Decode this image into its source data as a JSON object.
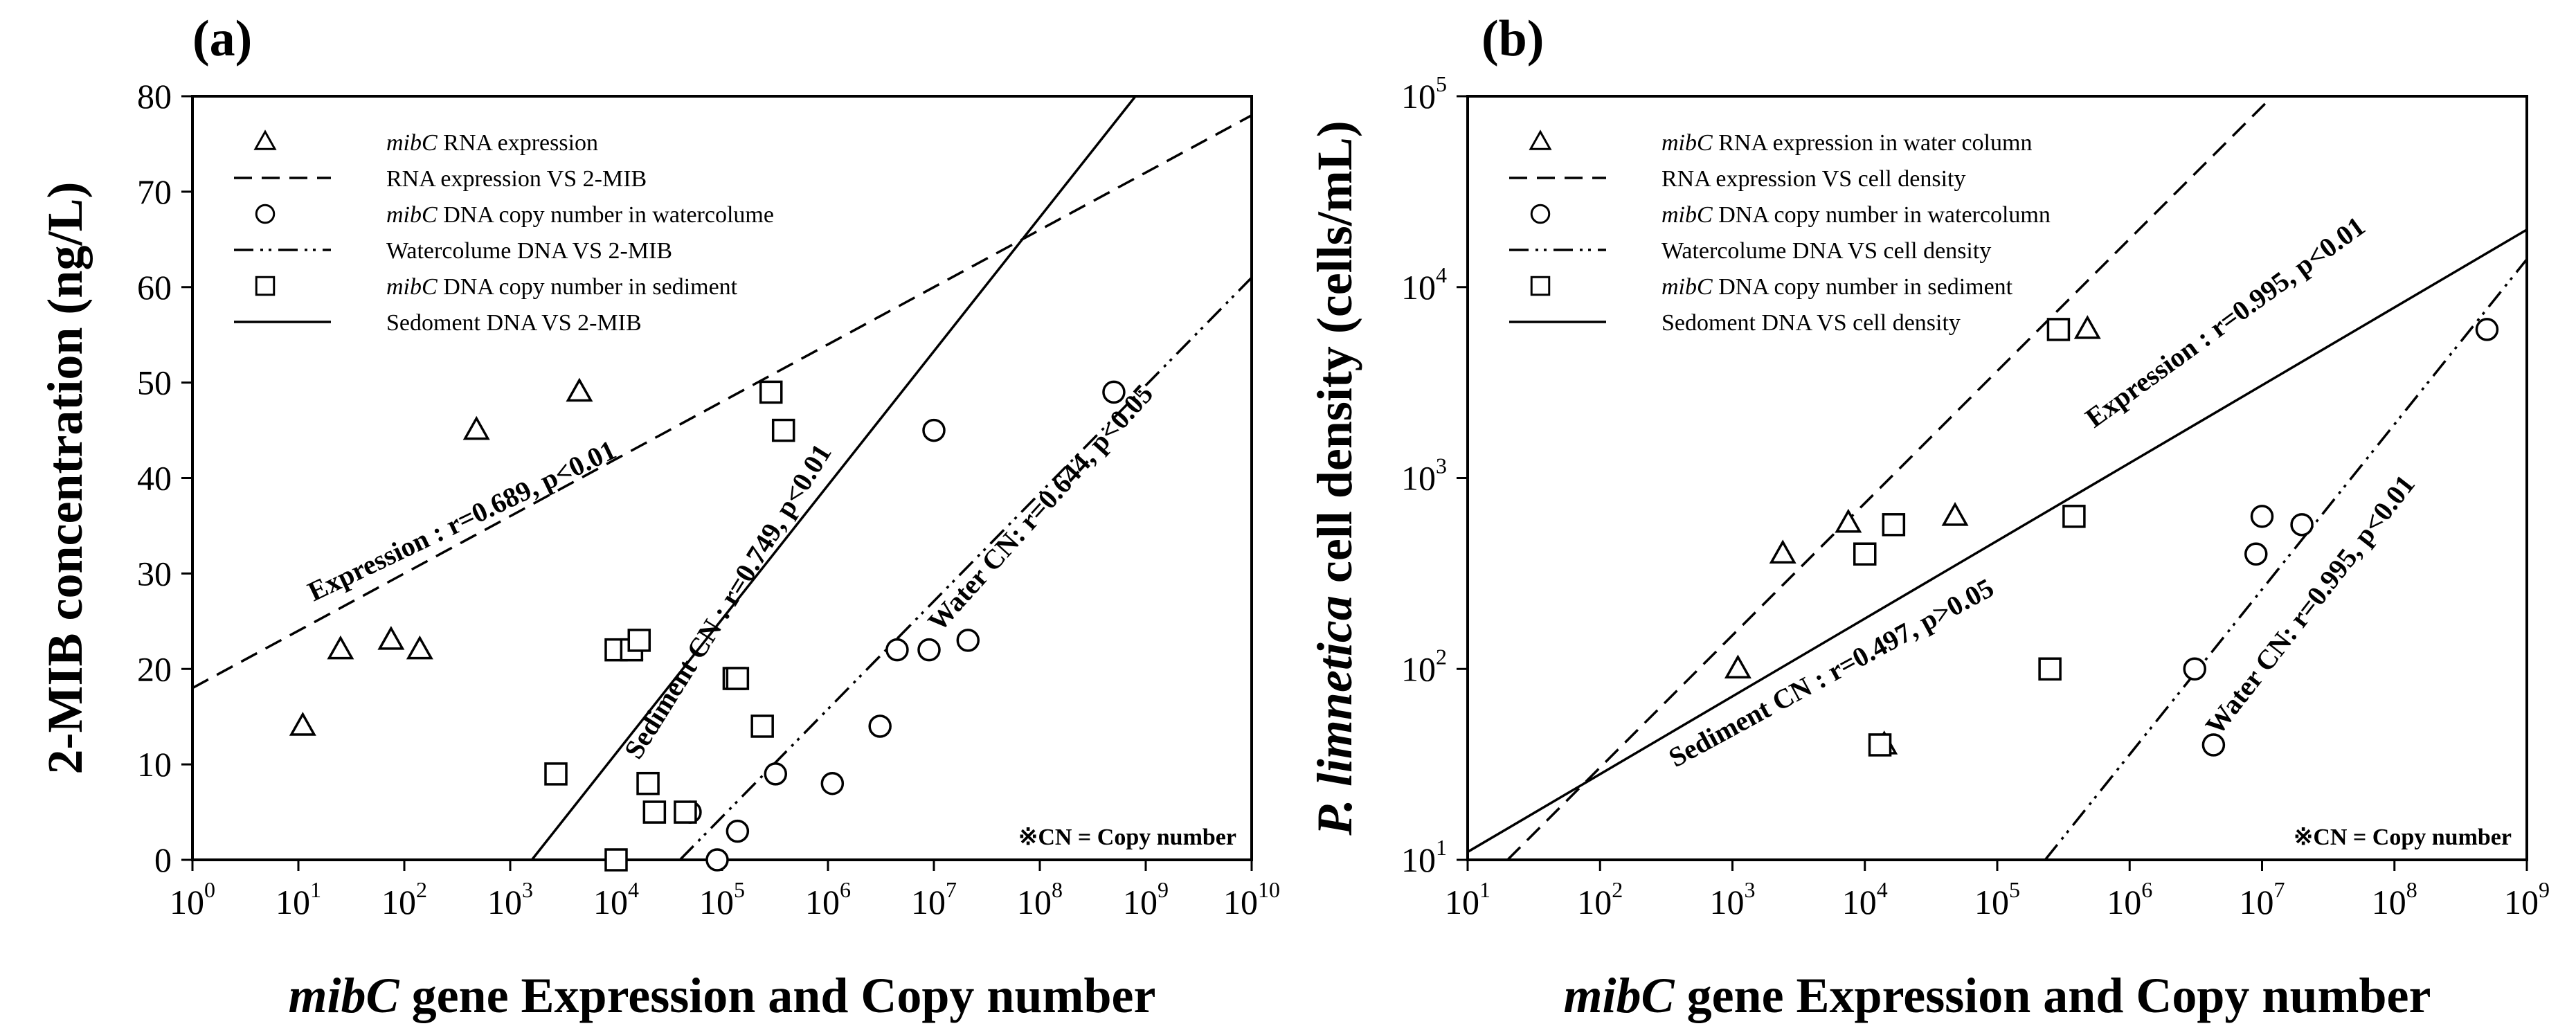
{
  "chart_data": [
    {
      "type": "scatter",
      "panel_label": "(a)",
      "x_scale": "log",
      "y_scale": "linear",
      "xlim_exp": [
        0,
        10
      ],
      "ylim": [
        0,
        80
      ],
      "x_ticks_exp": [
        0,
        1,
        2,
        3,
        4,
        5,
        6,
        7,
        8,
        9,
        10
      ],
      "y_ticks": [
        0,
        10,
        20,
        30,
        40,
        50,
        60,
        70,
        80
      ],
      "xlabel_italic": "mibC",
      "xlabel_rest": " gene Expression and Copy number",
      "ylabel": "2-MIB concentration (ng/L)",
      "legend": [
        {
          "kind": "triangle",
          "italic": "mibC",
          "text": " RNA expression"
        },
        {
          "kind": "dash",
          "italic": "",
          "text": "RNA expression VS 2-MIB"
        },
        {
          "kind": "circle",
          "italic": "mibC",
          "text": " DNA copy number in watercolume"
        },
        {
          "kind": "dashdot",
          "italic": "",
          "text": "Watercolume DNA VS 2-MIB"
        },
        {
          "kind": "square",
          "italic": "mibC",
          "text": " DNA copy number in sediment"
        },
        {
          "kind": "solid",
          "italic": "",
          "text": "Sedoment DNA VS 2-MIB"
        }
      ],
      "series": [
        {
          "name": "mibC RNA expression",
          "marker": "triangle",
          "points": [
            [
              11,
              14
            ],
            [
              25,
              22
            ],
            [
              75,
              23
            ],
            [
              140,
              22
            ],
            [
              480,
              45
            ],
            [
              4500,
              49
            ],
            [
              13500,
              22
            ]
          ]
        },
        {
          "name": "mibC DNA copy number in watercolume",
          "marker": "circle",
          "points": [
            [
              90000,
              0
            ],
            [
              50000,
              5
            ],
            [
              140000,
              3
            ],
            [
              320000,
              9
            ],
            [
              1100000,
              8
            ],
            [
              3100000,
              14
            ],
            [
              4500000,
              22
            ],
            [
              9000000,
              22
            ],
            [
              21000000,
              23
            ],
            [
              10000000,
              45
            ],
            [
              500000000,
              49
            ]
          ]
        },
        {
          "name": "mibC DNA copy number in sediment",
          "marker": "square",
          "points": [
            [
              10000,
              0
            ],
            [
              2700,
              9
            ],
            [
              20000,
              8
            ],
            [
              23000,
              5
            ],
            [
              45000,
              5
            ],
            [
              10000,
              22
            ],
            [
              14000,
              22
            ],
            [
              16500,
              23
            ],
            [
              130000,
              19
            ],
            [
              140000,
              19
            ],
            [
              240000,
              14
            ],
            [
              290000,
              49
            ],
            [
              380000,
              45
            ]
          ]
        }
      ],
      "fit_lines": [
        {
          "name": "RNA expression VS 2-MIB",
          "style": "dash",
          "from": [
            1,
            18
          ],
          "to": [
            10000000000,
            78
          ]
        },
        {
          "name": "Watercolume DNA VS 2-MIB",
          "style": "dashdot",
          "from": [
            40000,
            0
          ],
          "to": [
            10000000000,
            61
          ]
        },
        {
          "name": "Sedoment DNA VS 2-MIB",
          "style": "solid",
          "from": [
            1600,
            0
          ],
          "to": [
            800000000,
            80
          ]
        }
      ],
      "annotations": [
        {
          "text": "Expression : r=0.689, p<0.01"
        },
        {
          "text": "Sediment CN : r=0.749, p<0.01"
        },
        {
          "text": "Water CN: r=0.644, p<0.05"
        }
      ],
      "footnote": "※CN = Copy number"
    },
    {
      "type": "scatter",
      "panel_label": "(b)",
      "x_scale": "log",
      "y_scale": "log",
      "xlim_exp": [
        1,
        9
      ],
      "ylim_exp": [
        1,
        5
      ],
      "x_ticks_exp": [
        1,
        2,
        3,
        4,
        5,
        6,
        7,
        8,
        9
      ],
      "y_ticks_exp": [
        1,
        2,
        3,
        4,
        5
      ],
      "xlabel_italic": "mibC",
      "xlabel_rest": " gene Expression and Copy number",
      "ylabel_italic": "P. limnetica",
      "ylabel_rest": " cell density (cells/mL)",
      "legend": [
        {
          "kind": "triangle",
          "italic": "mibC",
          "text": " RNA expression in water column"
        },
        {
          "kind": "dash",
          "italic": "",
          "text": "RNA expression VS cell density"
        },
        {
          "kind": "circle",
          "italic": "mibC",
          "text": " DNA copy number in watercolumn"
        },
        {
          "kind": "dashdot",
          "italic": "",
          "text": "Watercolume DNA VS cell density"
        },
        {
          "kind": "square",
          "italic": "mibC",
          "text": " DNA copy number in sediment"
        },
        {
          "kind": "solid",
          "italic": "",
          "text": "Sedoment DNA VS cell density"
        }
      ],
      "series": [
        {
          "name": "mibC RNA expression in water column",
          "marker": "triangle",
          "points": [
            [
              1100,
              100
            ],
            [
              2400,
              400
            ],
            [
              7500,
              580
            ],
            [
              14000,
              40
            ],
            [
              48000,
              630
            ],
            [
              480000,
              6000
            ]
          ]
        },
        {
          "name": "mibC DNA copy number in watercolumn",
          "marker": "circle",
          "points": [
            [
              3100000,
              100
            ],
            [
              4300000,
              40
            ],
            [
              9000000,
              400
            ],
            [
              10000000,
              630
            ],
            [
              20000000,
              570
            ],
            [
              500000000,
              6000
            ]
          ]
        },
        {
          "name": "mibC DNA copy number in sediment",
          "marker": "square",
          "points": [
            [
              10000,
              400
            ],
            [
              13000,
              40
            ],
            [
              16500,
              570
            ],
            [
              250000,
              100
            ],
            [
              290000,
              6000
            ],
            [
              380000,
              630
            ]
          ]
        }
      ],
      "fit_lines": [
        {
          "name": "RNA expression VS cell density",
          "style": "dash",
          "from": [
            20,
            10
          ],
          "to": [
            12000000,
            100000
          ]
        },
        {
          "name": "Watercolume DNA VS cell density",
          "style": "dashdot",
          "from": [
            230000,
            10
          ],
          "to": [
            1000000000,
            14000
          ]
        },
        {
          "name": "Sedoment DNA VS cell density",
          "style": "solid",
          "from": [
            10,
            11
          ],
          "to": [
            1000000000,
            20000
          ]
        }
      ],
      "annotations": [
        {
          "text": "Expression : r=0.995, p<0.01"
        },
        {
          "text": "Sediment CN : r=0.497, p>0.05"
        },
        {
          "text": "Water CN: r=0.995, p<0.01"
        }
      ],
      "footnote": "※CN = Copy number"
    }
  ]
}
